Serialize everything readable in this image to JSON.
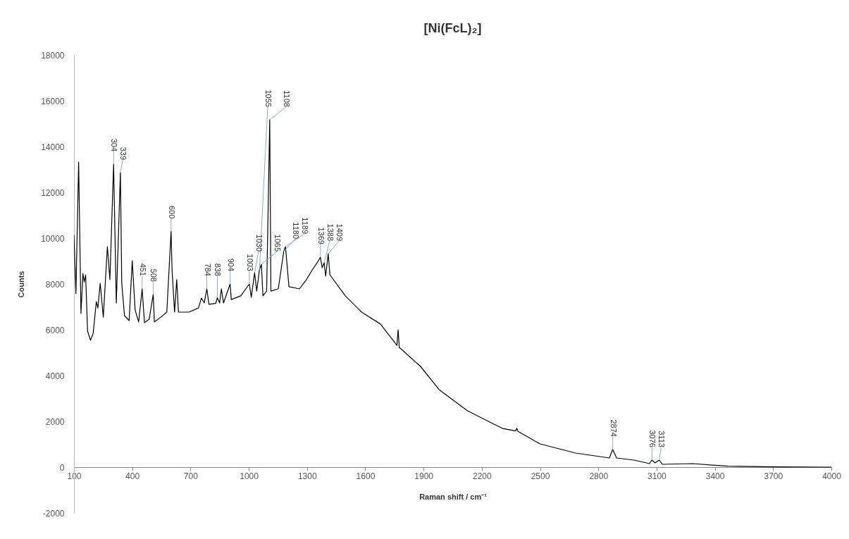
{
  "chart_data": {
    "type": "line",
    "title": "[Ni(FcL)₂]",
    "xlabel": "Raman shift / cm⁻¹",
    "ylabel": "Counts",
    "xlim": [
      100,
      4000
    ],
    "xticks": [
      100,
      400,
      700,
      1000,
      1300,
      1600,
      1900,
      2200,
      2500,
      2800,
      3100,
      3400,
      3700,
      4000
    ],
    "ylim": [
      -2000,
      18000
    ],
    "yticks": [
      -2000,
      0,
      2000,
      4000,
      6000,
      8000,
      10000,
      12000,
      14000,
      16000,
      18000
    ],
    "marker": "none",
    "series": [
      {
        "color": "#000000",
        "x": [
          100,
          110,
          124,
          136,
          146,
          153,
          160,
          170,
          185,
          199,
          215,
          223,
          235,
          251,
          272,
          285,
          304,
          318,
          339,
          346,
          360,
          384,
          400,
          415,
          433,
          451,
          463,
          487,
          508,
          514,
          547,
          578,
          600,
          605,
          618,
          629,
          638,
          692,
          741,
          756,
          771,
          784,
          795,
          830,
          838,
          850,
          859,
          870,
          904,
          910,
          959,
          1003,
          1013,
          1030,
          1041,
          1055,
          1065,
          1073,
          1092,
          1108,
          1114,
          1152,
          1180,
          1189,
          1207,
          1261,
          1297,
          1327,
          1352,
          1369,
          1378,
          1388,
          1396,
          1409,
          1418,
          1497,
          1581,
          1678,
          1763,
          1769,
          1775,
          1884,
          1980,
          2126,
          2259,
          2307,
          2374,
          2380,
          2386,
          2500,
          2682,
          2857,
          2874,
          2894,
          2984,
          3063,
          3076,
          3092,
          3113,
          3130,
          3287,
          3468,
          3710,
          4000
        ],
        "values": [
          10145,
          7580,
          13323,
          6708,
          8460,
          8090,
          8400,
          5940,
          5540,
          5850,
          7230,
          6950,
          8030,
          6550,
          9630,
          8190,
          13230,
          7170,
          12860,
          8030,
          6615,
          6400,
          9015,
          6860,
          6340,
          7785,
          6310,
          6460,
          7540,
          6340,
          6550,
          6770,
          10300,
          8615,
          6770,
          8190,
          6770,
          6770,
          6950,
          7380,
          7170,
          7785,
          7110,
          7150,
          7400,
          7170,
          7785,
          7170,
          8000,
          7320,
          7480,
          8000,
          7420,
          8490,
          7690,
          8615,
          8860,
          7480,
          7690,
          15170,
          7690,
          7785,
          9415,
          9630,
          7880,
          7785,
          8190,
          8615,
          8925,
          9170,
          8710,
          8925,
          8340,
          9320,
          8400,
          7480,
          6770,
          6250,
          5320,
          6000,
          5230,
          4400,
          3385,
          2460,
          1890,
          1690,
          1580,
          1700,
          1560,
          1015,
          615,
          400,
          770,
          400,
          308,
          154,
          308,
          185,
          308,
          123,
          154,
          40,
          10,
          0
        ]
      }
    ],
    "annotations": [
      {
        "text": "304",
        "x": 304,
        "y": 13230
      },
      {
        "text": "339",
        "x": 339,
        "y": 12860
      },
      {
        "text": "451",
        "x": 451,
        "y": 7785
      },
      {
        "text": "508",
        "x": 508,
        "y": 7540
      },
      {
        "text": "600",
        "x": 600,
        "y": 10300
      },
      {
        "text": "784",
        "x": 784,
        "y": 7785
      },
      {
        "text": "838",
        "x": 838,
        "y": 7400
      },
      {
        "text": "904",
        "x": 904,
        "y": 8000
      },
      {
        "text": "1003",
        "x": 1003,
        "y": 8000
      },
      {
        "text": "1030",
        "x": 1030,
        "y": 8490
      },
      {
        "text": "1055",
        "x": 1055,
        "y": 8615
      },
      {
        "text": "1065",
        "x": 1065,
        "y": 8860
      },
      {
        "text": "1108",
        "x": 1108,
        "y": 15170
      },
      {
        "text": "1180",
        "x": 1180,
        "y": 9415
      },
      {
        "text": "1189",
        "x": 1189,
        "y": 9630
      },
      {
        "text": "1369",
        "x": 1369,
        "y": 9170
      },
      {
        "text": "1388",
        "x": 1388,
        "y": 8925
      },
      {
        "text": "1409",
        "x": 1409,
        "y": 9320
      },
      {
        "text": "2874",
        "x": 2874,
        "y": 770
      },
      {
        "text": "3076",
        "x": 3076,
        "y": 308
      },
      {
        "text": "3113",
        "x": 3113,
        "y": 308
      }
    ]
  }
}
